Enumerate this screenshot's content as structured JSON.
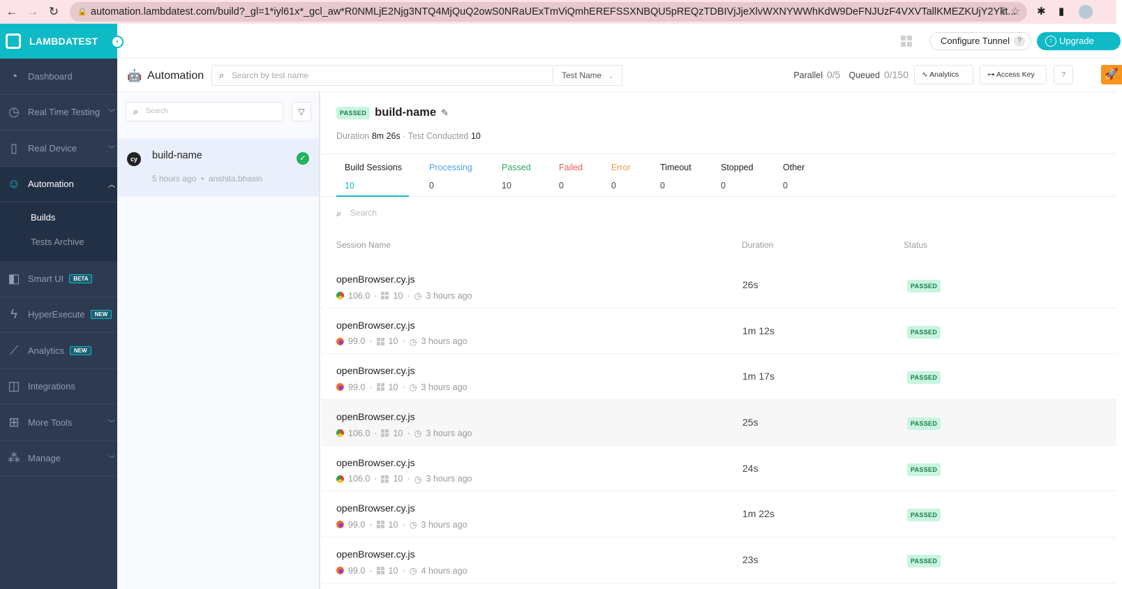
{
  "browser": {
    "url": "automation.lambdatest.com/build?_gl=1*iyl61x*_gcl_aw*R0NMLjE2Njg3NTQ4MjQuQ2owS0NRaUExTmViQmhEREFSSXNBQU5pREQzTDBIVjJjeXlvWXNYWWhKdW9DeFNJUzF4VXVTallKMEZKUjY2Ykt..."
  },
  "brand": {
    "name": "LAMBDATEST",
    "accent": "#0ebac5",
    "sidebar_bg": "#2d3a51"
  },
  "sidebar": {
    "items": [
      {
        "label": "Dashboard",
        "icon": "gauge-icon"
      },
      {
        "label": "Real Time Testing",
        "icon": "clock-icon"
      },
      {
        "label": "Real Device",
        "icon": "device-icon"
      },
      {
        "label": "Automation",
        "icon": "robot-icon"
      },
      {
        "label": "Smart UI",
        "icon": "smartui-icon",
        "badge": "BETA"
      },
      {
        "label": "HyperExecute",
        "icon": "bolt-icon",
        "badge": "NEW"
      },
      {
        "label": "Analytics",
        "icon": "chart-icon",
        "badge": "NEW"
      },
      {
        "label": "Integrations",
        "icon": "integrations-icon"
      },
      {
        "label": "More Tools",
        "icon": "plus-icon"
      },
      {
        "label": "Manage",
        "icon": "shapes-icon"
      }
    ],
    "sub": [
      "Builds",
      "Tests Archive"
    ]
  },
  "header": {
    "configure_tunnel": "Configure Tunnel",
    "help": "?",
    "upgrade": "Upgrade"
  },
  "toolbar": {
    "title": "Automation",
    "search_placeholder": "Search by test name",
    "filter_select": "Test Name",
    "parallel_label": "Parallel",
    "parallel_value": "0/5",
    "queued_label": "Queued",
    "queued_value": "0/150",
    "analytics": "Analytics",
    "access_key": "Access Key",
    "help": "?"
  },
  "builds": {
    "search_placeholder": "Search",
    "items": [
      {
        "avatar": "cy",
        "name": "build-name",
        "time": "5 hours ago",
        "user": "anshita.bhasin",
        "status": "passed"
      }
    ]
  },
  "detail": {
    "status": "PASSED",
    "name": "build-name",
    "duration_label": "Duration",
    "duration": "8m 26s",
    "conducted_label": "Test Conducted",
    "conducted": "10",
    "tabs": [
      {
        "label": "Build Sessions",
        "count": "10",
        "color": "#222222"
      },
      {
        "label": "Processing",
        "count": "0",
        "color": "#4aa3f0"
      },
      {
        "label": "Passed",
        "count": "10",
        "color": "#2eaa5c"
      },
      {
        "label": "Failed",
        "count": "0",
        "color": "#f05a5a"
      },
      {
        "label": "Error",
        "count": "0",
        "color": "#f59a4a"
      },
      {
        "label": "Timeout",
        "count": "0",
        "color": "#222222"
      },
      {
        "label": "Stopped",
        "count": "0",
        "color": "#222222"
      },
      {
        "label": "Other",
        "count": "0",
        "color": "#222222"
      }
    ],
    "search_placeholder": "Search",
    "columns": [
      "Session Name",
      "Duration",
      "Status"
    ],
    "sessions": [
      {
        "name": "openBrowser.cy.js",
        "browser": "chrome",
        "version": "106.0",
        "os": "10",
        "time": "3 hours ago",
        "duration": "26s",
        "status": "PASSED"
      },
      {
        "name": "openBrowser.cy.js",
        "browser": "firefox",
        "version": "99.0",
        "os": "10",
        "time": "3 hours ago",
        "duration": "1m 12s",
        "status": "PASSED"
      },
      {
        "name": "openBrowser.cy.js",
        "browser": "firefox",
        "version": "99.0",
        "os": "10",
        "time": "3 hours ago",
        "duration": "1m 17s",
        "status": "PASSED"
      },
      {
        "name": "openBrowser.cy.js",
        "browser": "chrome",
        "version": "106.0",
        "os": "10",
        "time": "3 hours ago",
        "duration": "25s",
        "status": "PASSED"
      },
      {
        "name": "openBrowser.cy.js",
        "browser": "chrome",
        "version": "106.0",
        "os": "10",
        "time": "3 hours ago",
        "duration": "24s",
        "status": "PASSED"
      },
      {
        "name": "openBrowser.cy.js",
        "browser": "firefox",
        "version": "99.0",
        "os": "10",
        "time": "3 hours ago",
        "duration": "1m 22s",
        "status": "PASSED"
      },
      {
        "name": "openBrowser.cy.js",
        "browser": "firefox",
        "version": "99.0",
        "os": "10",
        "time": "4 hours ago",
        "duration": "23s",
        "status": "PASSED"
      }
    ]
  }
}
